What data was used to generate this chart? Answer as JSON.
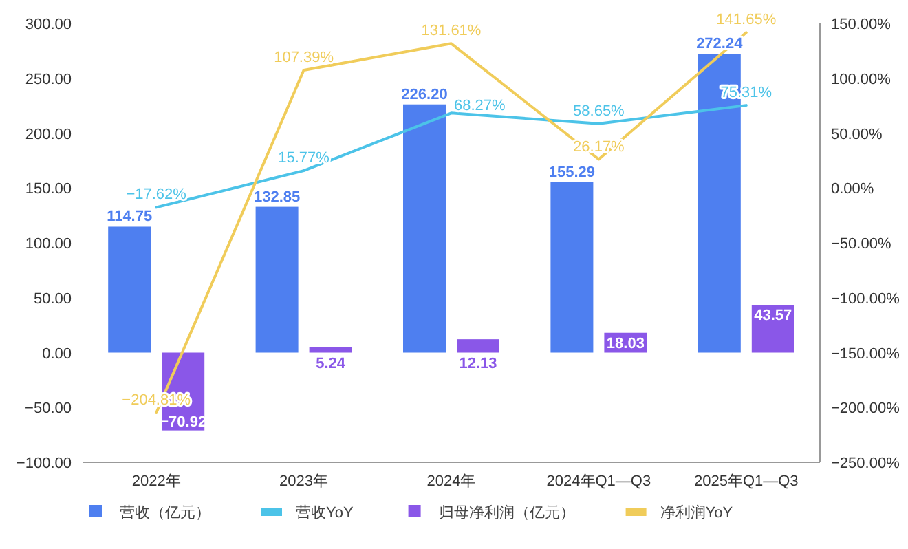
{
  "chart_data": {
    "type": "bar",
    "categories": [
      "2022年",
      "2023年",
      "2024年",
      "2024年Q1—Q3",
      "2025年Q1—Q3"
    ],
    "ylim": [
      -100,
      300
    ],
    "yticks": [
      {
        "value": -100,
        "label": "−100.00"
      },
      {
        "value": -50,
        "label": "−50.00"
      },
      {
        "value": 0,
        "label": "0.00"
      },
      {
        "value": 50,
        "label": "50.00"
      },
      {
        "value": 100,
        "label": "100.00"
      },
      {
        "value": 150,
        "label": "150.00"
      },
      {
        "value": 200,
        "label": "200.00"
      },
      {
        "value": 250,
        "label": "250.00"
      },
      {
        "value": 300,
        "label": "300.00"
      }
    ],
    "y2lim": [
      -250,
      150
    ],
    "y2ticks": [
      {
        "value": -250,
        "label": "−250.00%"
      },
      {
        "value": -200,
        "label": "−200.00%"
      },
      {
        "value": -150,
        "label": "−150.00%"
      },
      {
        "value": -100,
        "label": "−100.00%"
      },
      {
        "value": -50,
        "label": "−50.00%"
      },
      {
        "value": 0,
        "label": "0.00%"
      },
      {
        "value": 50,
        "label": "50.00%"
      },
      {
        "value": 100,
        "label": "100.00%"
      },
      {
        "value": 150,
        "label": "150.00%"
      }
    ],
    "series": [
      {
        "name": "营收（亿元）",
        "color": "#4e7ff0",
        "values": [
          114.75,
          132.85,
          226.2,
          155.29,
          272.24
        ],
        "value_labels": [
          "114.75",
          "132.85",
          "226.20",
          "155.29",
          "272.24"
        ]
      },
      {
        "name": "营收YoY",
        "type": "line",
        "axis": "y2",
        "color": "#4cc3e8",
        "values": [
          -17.62,
          15.77,
          68.27,
          58.65,
          75.31
        ],
        "value_labels": [
          "−17.62%",
          "15.77%",
          "68.27%",
          "58.65%",
          "75.31%"
        ]
      },
      {
        "name": "归母净利润（亿元）",
        "color": "#8a57e8",
        "values": [
          -70.92,
          5.24,
          12.13,
          18.03,
          43.57
        ],
        "value_labels": [
          "−70.92",
          "5.24",
          "12.13",
          "18.03",
          "43.57"
        ]
      },
      {
        "name": "净利润YoY",
        "type": "line",
        "axis": "y2",
        "color": "#f0cc5a",
        "values": [
          -204.81,
          107.39,
          131.61,
          26.17,
          141.65
        ],
        "value_labels": [
          "−204.81%",
          "107.39%",
          "131.61%",
          "26.17%",
          "141.65%"
        ]
      }
    ],
    "legend": "bottom",
    "grid": false,
    "marker": "none"
  }
}
